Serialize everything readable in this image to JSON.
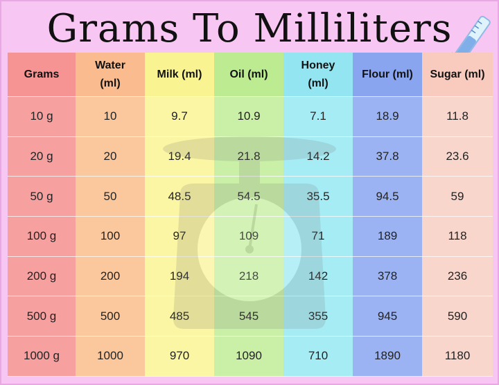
{
  "title": "Grams To Milliliters",
  "colors": {
    "background": "#f7c6f2",
    "grams": "#f7a0a0",
    "water": "#fbc79c",
    "milk": "#fbf6a3",
    "oil": "#c9f0a6",
    "honey": "#a6ecf5",
    "flour": "#9bb3f3",
    "sugar": "#f9d6cc"
  },
  "icons": [
    "measuring-cylinder-icon",
    "kitchen-scale-watermark"
  ],
  "table": {
    "headers": [
      [
        "Grams"
      ],
      [
        "Water",
        "(ml)"
      ],
      [
        "Milk (ml)"
      ],
      [
        "Oil (ml)"
      ],
      [
        "Honey",
        "(ml)"
      ],
      [
        "Flour (ml)"
      ],
      [
        "Sugar (ml)"
      ]
    ],
    "rows": [
      [
        "10 g",
        "10",
        "9.7",
        "10.9",
        "7.1",
        "18.9",
        "11.8"
      ],
      [
        "20 g",
        "20",
        "19.4",
        "21.8",
        "14.2",
        "37.8",
        "23.6"
      ],
      [
        "50 g",
        "50",
        "48.5",
        "54.5",
        "35.5",
        "94.5",
        "59"
      ],
      [
        "100 g",
        "100",
        "97",
        "109",
        "71",
        "189",
        "118"
      ],
      [
        "200 g",
        "200",
        "194",
        "218",
        "142",
        "378",
        "236"
      ],
      [
        "500 g",
        "500",
        "485",
        "545",
        "355",
        "945",
        "590"
      ],
      [
        "1000 g",
        "1000",
        "970",
        "1090",
        "710",
        "1890",
        "1180"
      ]
    ]
  }
}
